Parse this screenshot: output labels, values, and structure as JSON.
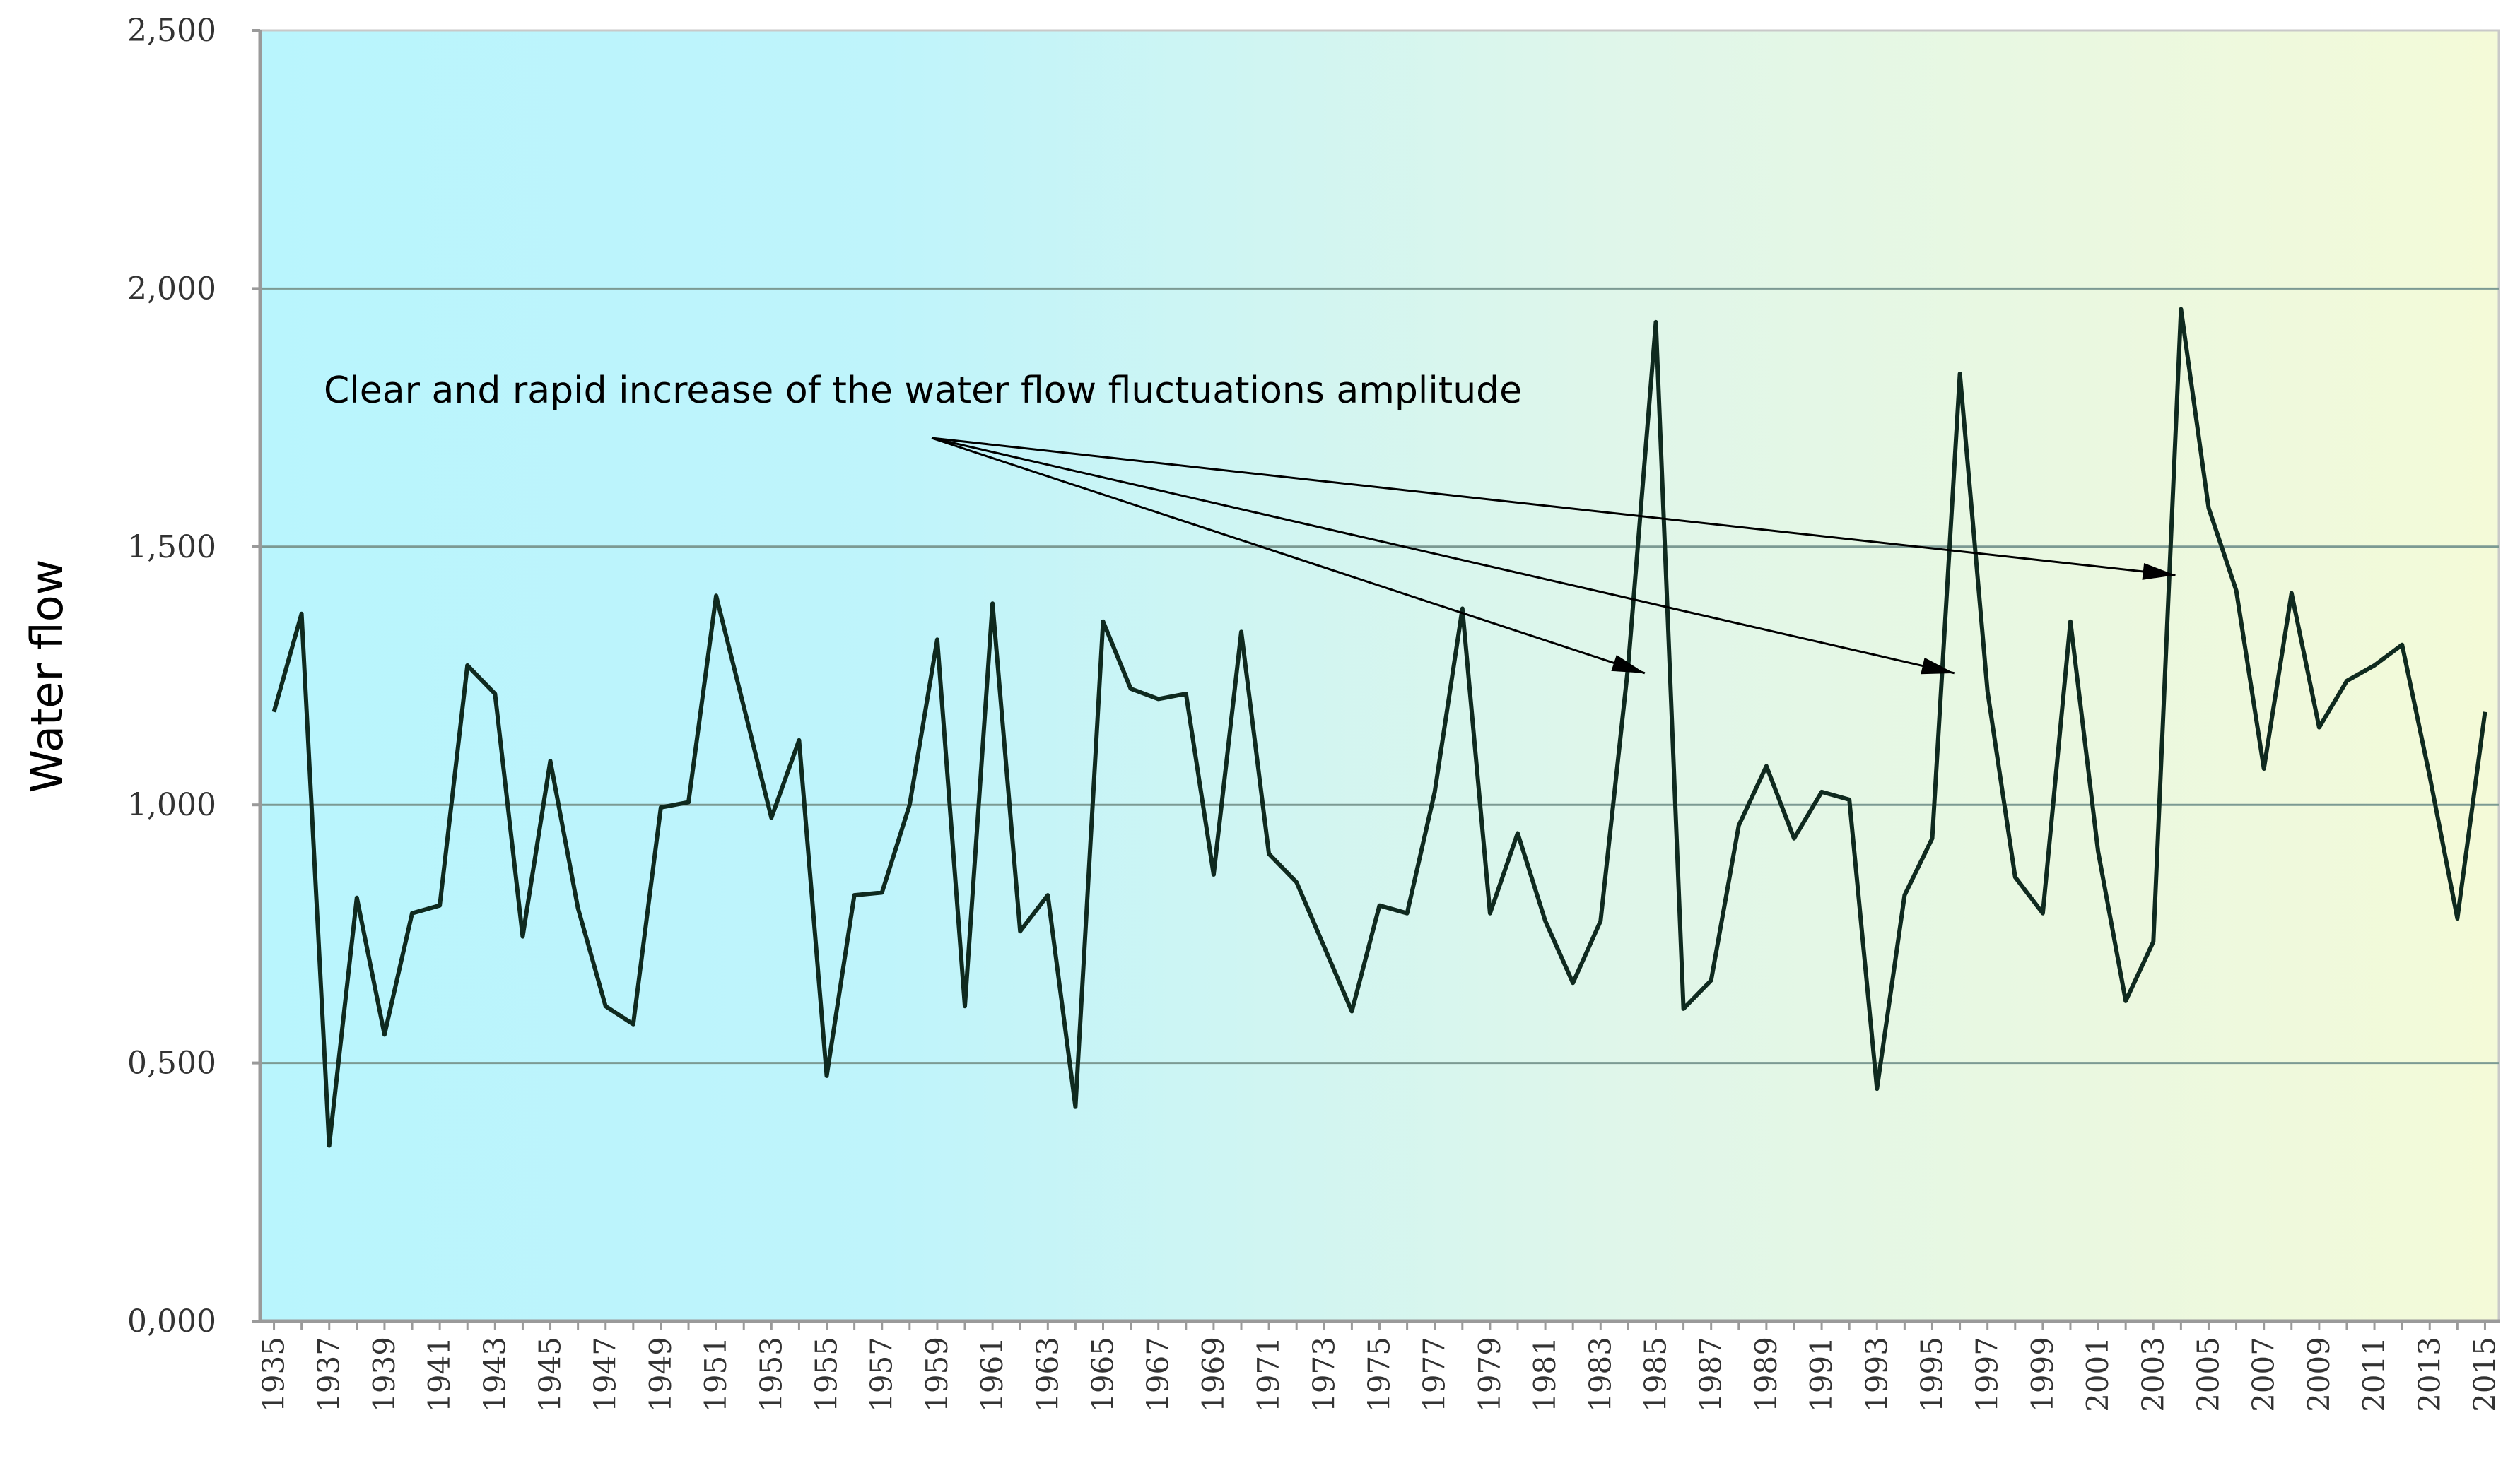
{
  "chart_data": {
    "type": "line",
    "title": "",
    "xlabel": "",
    "ylabel": "Water flow",
    "ylim": [
      0,
      2.5
    ],
    "yticks": [
      0,
      0.5,
      1.0,
      1.5,
      2.0,
      2.5
    ],
    "ytick_labels": [
      "0,000",
      "0,500",
      "1,000",
      "1,500",
      "2,000",
      "2,500"
    ],
    "grid": true,
    "background": {
      "left": "#b9f5fd",
      "middle": "#dff6ea",
      "right": "#f4fad8"
    },
    "line_color": "#0f2a1f",
    "x": [
      1935,
      1936,
      1937,
      1938,
      1939,
      1940,
      1941,
      1942,
      1943,
      1944,
      1945,
      1946,
      1947,
      1948,
      1949,
      1950,
      1951,
      1952,
      1953,
      1954,
      1955,
      1956,
      1957,
      1958,
      1959,
      1960,
      1961,
      1962,
      1963,
      1964,
      1965,
      1966,
      1967,
      1968,
      1969,
      1970,
      1971,
      1972,
      1973,
      1974,
      1975,
      1976,
      1977,
      1978,
      1979,
      1980,
      1981,
      1982,
      1983,
      1984,
      1985,
      1986,
      1987,
      1988,
      1989,
      1990,
      1991,
      1992,
      1993,
      1994,
      1995,
      1996,
      1997,
      1998,
      1999,
      2000,
      2001,
      2002,
      2003,
      2004,
      2005,
      2006,
      2007,
      2008,
      2009,
      2010,
      2011,
      2012,
      2013,
      2014,
      2015
    ],
    "xtick_labels": [
      "1935",
      "1937",
      "1939",
      "1941",
      "1943",
      "1945",
      "1947",
      "1949",
      "1951",
      "1953",
      "1955",
      "1957",
      "1959",
      "1961",
      "1963",
      "1965",
      "1967",
      "1969",
      "1971",
      "1973",
      "1975",
      "1977",
      "1979",
      "1981",
      "1983",
      "1985",
      "1987",
      "1989",
      "1991",
      "1993",
      "1995",
      "1997",
      "1999",
      "2001",
      "2003",
      "2005",
      "2007",
      "2009",
      "2011",
      "2013",
      "2015"
    ],
    "series": [
      {
        "name": "Water flow",
        "values": [
          1.18,
          1.37,
          0.34,
          0.82,
          0.555,
          0.79,
          0.805,
          1.27,
          1.215,
          0.745,
          1.085,
          0.8,
          0.61,
          0.575,
          0.995,
          1.005,
          1.405,
          1.19,
          0.975,
          1.125,
          0.475,
          0.825,
          0.83,
          1.0,
          1.32,
          0.61,
          1.39,
          0.755,
          0.825,
          0.415,
          1.355,
          1.225,
          1.205,
          1.215,
          0.865,
          1.335,
          0.905,
          0.85,
          0.725,
          0.6,
          0.805,
          0.79,
          1.025,
          1.38,
          0.79,
          0.945,
          0.775,
          0.655,
          0.775,
          1.27,
          1.935,
          0.605,
          0.66,
          0.96,
          1.075,
          0.935,
          1.025,
          1.01,
          0.45,
          0.825,
          0.935,
          1.835,
          1.22,
          0.86,
          0.79,
          1.355,
          0.91,
          0.62,
          0.735,
          1.96,
          1.575,
          1.415,
          1.07,
          1.41,
          1.15,
          1.24,
          1.27,
          1.31,
          1.055,
          0.78,
          1.18
        ]
      }
    ],
    "annotations": [
      {
        "text": "Clear and rapid increase of the water flow fluctuations amplitude",
        "arrow_targets": [
          {
            "x": 1984.6,
            "y": 1.255
          },
          {
            "x": 1995.8,
            "y": 1.255
          },
          {
            "x": 2003.8,
            "y": 1.445
          }
        ]
      }
    ]
  }
}
